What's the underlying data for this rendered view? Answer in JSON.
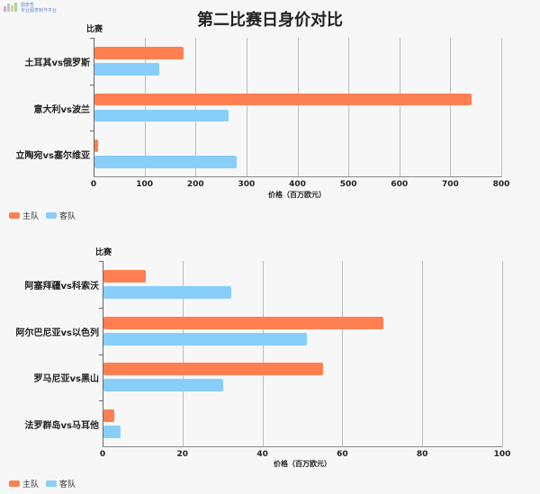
{
  "page": {
    "title": "第二比赛日身价对比",
    "logo": {
      "line1": "图表秀",
      "line2": "专业图表制作平台"
    }
  },
  "colors": {
    "home": "#ff7f50",
    "away": "#87cefa",
    "background": "#f7f7f7"
  },
  "charts": [
    {
      "y_title": "比赛",
      "x_title": "价格（百万欧元）",
      "x_ticks": [
        "0",
        "100",
        "200",
        "300",
        "400",
        "500",
        "600",
        "700",
        "800"
      ],
      "categories": [
        "土耳其vs俄罗斯",
        "意大利vs波兰",
        "立陶宛vs塞尔维亚"
      ],
      "legend": [
        "主队",
        "客队"
      ]
    },
    {
      "y_title": "比赛",
      "x_title": "价格（百万欧元）",
      "x_ticks": [
        "0",
        "20",
        "40",
        "60",
        "80",
        "100"
      ],
      "categories": [
        "阿塞拜疆vs科索沃",
        "阿尔巴尼亚vs以色列",
        "罗马尼亚vs黑山",
        "法罗群岛vs马耳他"
      ],
      "legend": [
        "主队",
        "客队"
      ]
    }
  ],
  "chart_data": [
    {
      "type": "bar",
      "orientation": "horizontal",
      "title": "第二比赛日身价对比",
      "xlabel": "价格（百万欧元）",
      "ylabel": "比赛",
      "categories": [
        "土耳其vs俄罗斯",
        "意大利vs波兰",
        "立陶宛vs塞尔维亚"
      ],
      "series": [
        {
          "name": "主队",
          "values": [
            175,
            740,
            7
          ]
        },
        {
          "name": "客队",
          "values": [
            127,
            263,
            279
          ]
        }
      ],
      "xlim": [
        0,
        800
      ],
      "grid": true,
      "legend_position": "bottom-left"
    },
    {
      "type": "bar",
      "orientation": "horizontal",
      "xlabel": "价格（百万欧元）",
      "ylabel": "比赛",
      "categories": [
        "阿塞拜疆vs科索沃",
        "阿尔巴尼亚vs以色列",
        "罗马尼亚vs黑山",
        "法罗群岛vs马耳他"
      ],
      "series": [
        {
          "name": "主队",
          "values": [
            10.5,
            70,
            55,
            2.7
          ]
        },
        {
          "name": "客队",
          "values": [
            32,
            51,
            30,
            4.2
          ]
        }
      ],
      "xlim": [
        0,
        100
      ],
      "grid": true,
      "legend_position": "bottom-left"
    }
  ]
}
